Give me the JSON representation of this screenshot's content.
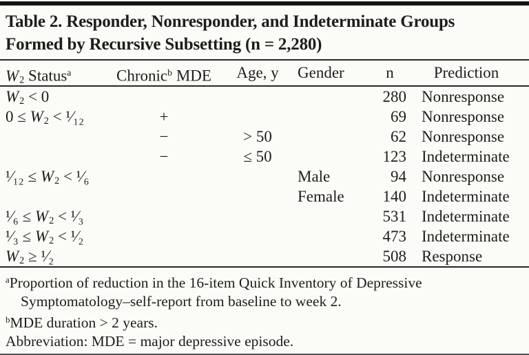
{
  "title": {
    "line1": "Table 2. Responder, Nonresponder, and Indeterminate Groups",
    "line2": "Formed by Recursive Subsetting (n = 2,280)"
  },
  "header": {
    "w2_var": "W",
    "w2_sub": "2",
    "w2_label": " Status",
    "w2_sup": "a",
    "chronic_label": "Chronic",
    "chronic_sup": "b",
    "chronic_label2": " MDE",
    "age_label": "Age, y",
    "gender_label": "Gender",
    "n_label": "n",
    "prediction_label": "Prediction"
  },
  "rows": [
    {
      "w2_pre": "",
      "w2_var": "W",
      "w2_sub": "2",
      "w2_post": " < 0",
      "chronic": "",
      "age": "",
      "gender": "",
      "n": "280",
      "prediction": "Nonresponse"
    },
    {
      "w2_pre": "0 ≤ ",
      "w2_var": "W",
      "w2_sub": "2",
      "w2_post": " < ¹⁄₁₂",
      "chronic": "+",
      "age": "",
      "gender": "",
      "n": "69",
      "prediction": "Nonresponse"
    },
    {
      "w2_pre": "",
      "w2_var": "",
      "w2_sub": "",
      "w2_post": "",
      "chronic": "−",
      "age": "> 50",
      "gender": "",
      "n": "62",
      "prediction": "Nonresponse"
    },
    {
      "w2_pre": "",
      "w2_var": "",
      "w2_sub": "",
      "w2_post": "",
      "chronic": "−",
      "age": "≤ 50",
      "gender": "",
      "n": "123",
      "prediction": "Indeterminate"
    },
    {
      "w2_pre": "¹⁄₁₂ ≤ ",
      "w2_var": "W",
      "w2_sub": "2",
      "w2_post": " < ¹⁄₆",
      "chronic": "",
      "age": "",
      "gender": "Male",
      "n": "94",
      "prediction": "Nonresponse"
    },
    {
      "w2_pre": "",
      "w2_var": "",
      "w2_sub": "",
      "w2_post": "",
      "chronic": "",
      "age": "",
      "gender": "Female",
      "n": "140",
      "prediction": "Indeterminate"
    },
    {
      "w2_pre": "¹⁄₆ ≤ ",
      "w2_var": "W",
      "w2_sub": "2",
      "w2_post": " < ¹⁄₃",
      "chronic": "",
      "age": "",
      "gender": "",
      "n": "531",
      "prediction": "Indeterminate"
    },
    {
      "w2_pre": "¹⁄₃ ≤ ",
      "w2_var": "W",
      "w2_sub": "2",
      "w2_post": " < ¹⁄₂",
      "chronic": "",
      "age": "",
      "gender": "",
      "n": "473",
      "prediction": "Indeterminate"
    },
    {
      "w2_pre": "",
      "w2_var": "W",
      "w2_sub": "2",
      "w2_post": " ≥ ¹⁄₂",
      "chronic": "",
      "age": "",
      "gender": "",
      "n": "508",
      "prediction": "Response"
    }
  ],
  "footnotes": {
    "a_marker": "a",
    "a_line1": "Proportion of reduction in the 16-item Quick Inventory of Depressive",
    "a_line2": "Symptomatology–self-report from baseline to week 2.",
    "b_marker": "b",
    "b_text": "MDE duration > 2 years.",
    "abbr_text": "Abbreviation: MDE = major depressive episode."
  }
}
